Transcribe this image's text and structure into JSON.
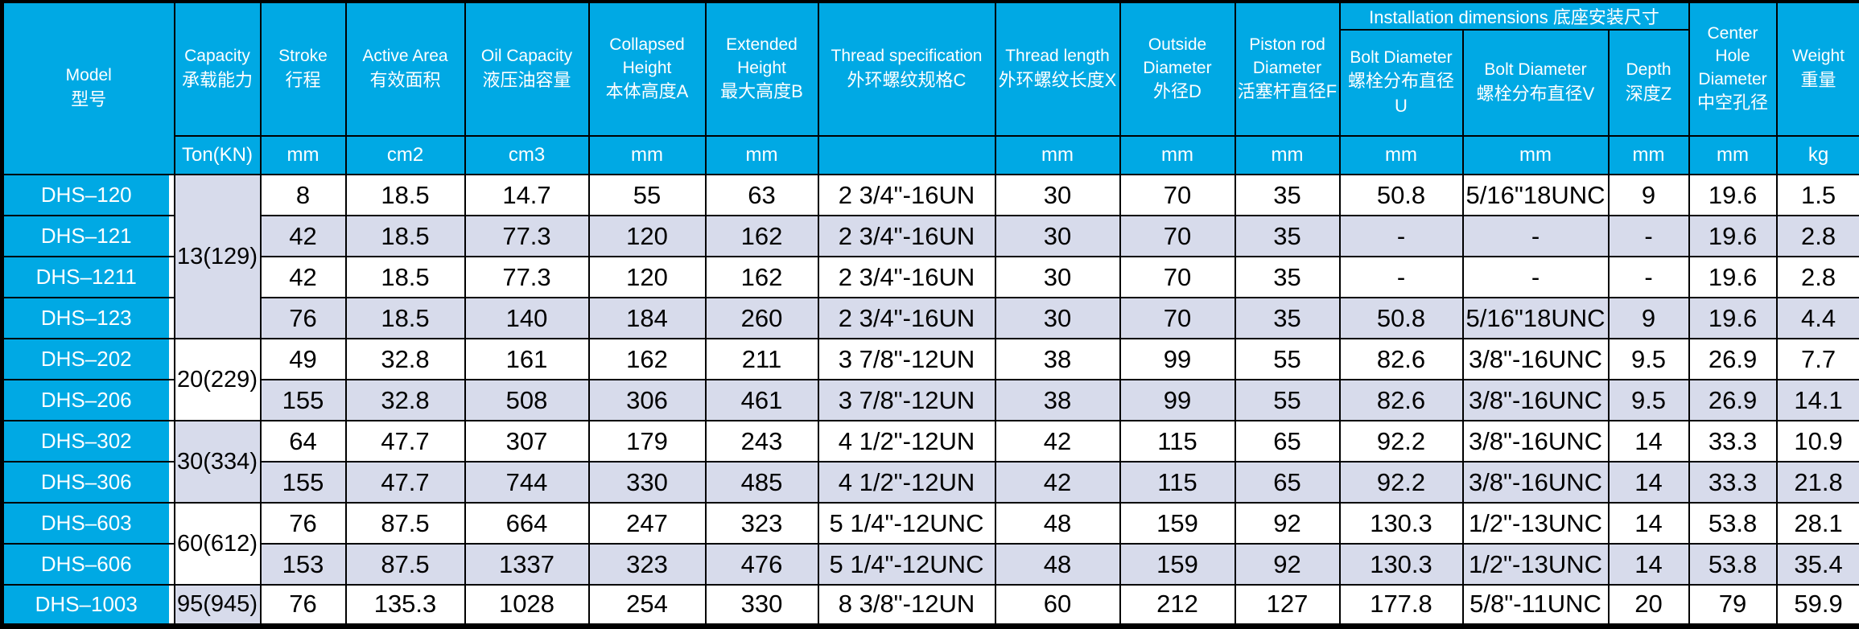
{
  "banner": "Installation dimensions 底座安装尺寸",
  "columns": [
    {
      "en": "Model",
      "zh": "型号",
      "unit": null
    },
    {
      "en": "Capacity",
      "zh": "承载能力",
      "unit": "Ton(KN)"
    },
    {
      "en": "Stroke",
      "zh": "行程",
      "unit": "mm"
    },
    {
      "en": "Active Area",
      "zh": "有效面积",
      "unit": "cm2"
    },
    {
      "en": "Oil Capacity",
      "zh": "液压油容量",
      "unit": "cm3"
    },
    {
      "en": "Collapsed Height",
      "zh": "本体高度A",
      "unit": "mm"
    },
    {
      "en": "Extended Height",
      "zh": "最大高度B",
      "unit": "mm"
    },
    {
      "en": "Thread specification",
      "zh": "外环螺纹规格C",
      "unit": ""
    },
    {
      "en": "Thread length",
      "zh": "外环螺纹长度X",
      "unit": "mm"
    },
    {
      "en": "Outside Diameter",
      "zh": "外径D",
      "unit": "mm"
    },
    {
      "en": "Piston rod Diameter",
      "zh": "活塞杆直径F",
      "unit": "mm"
    },
    {
      "en": "Bolt Diameter",
      "zh": "螺栓分布直径U",
      "unit": "mm"
    },
    {
      "en": "Bolt Diameter",
      "zh": "螺栓分布直径V",
      "unit": "mm"
    },
    {
      "en": "Depth",
      "zh": "深度Z",
      "unit": "mm"
    },
    {
      "en": "Center Hole Diameter",
      "zh": "中空孔径",
      "unit": "mm"
    },
    {
      "en": "Weight",
      "zh": "重量",
      "unit": "kg"
    }
  ],
  "groups": [
    {
      "capacity": "13(129)",
      "models": [
        {
          "model": "DHS–120",
          "values": [
            "8",
            "18.5",
            "14.7",
            "55",
            "63",
            "2 3/4\"-16UN",
            "30",
            "70",
            "35",
            "50.8",
            "5/16\"18UNC",
            "9",
            "19.6",
            "1.5"
          ]
        },
        {
          "model": "DHS–121",
          "values": [
            "42",
            "18.5",
            "77.3",
            "120",
            "162",
            "2 3/4\"-16UN",
            "30",
            "70",
            "35",
            "-",
            "-",
            "-",
            "19.6",
            "2.8"
          ]
        },
        {
          "model": "DHS–1211",
          "values": [
            "42",
            "18.5",
            "77.3",
            "120",
            "162",
            "2 3/4\"-16UN",
            "30",
            "70",
            "35",
            "-",
            "-",
            "-",
            "19.6",
            "2.8"
          ]
        },
        {
          "model": "DHS–123",
          "values": [
            "76",
            "18.5",
            "140",
            "184",
            "260",
            "2 3/4\"-16UN",
            "30",
            "70",
            "35",
            "50.8",
            "5/16\"18UNC",
            "9",
            "19.6",
            "4.4"
          ]
        }
      ]
    },
    {
      "capacity": "20(229)",
      "models": [
        {
          "model": "DHS–202",
          "values": [
            "49",
            "32.8",
            "161",
            "162",
            "211",
            "3 7/8\"-12UN",
            "38",
            "99",
            "55",
            "82.6",
            "3/8\"-16UNC",
            "9.5",
            "26.9",
            "7.7"
          ]
        },
        {
          "model": "DHS–206",
          "values": [
            "155",
            "32.8",
            "508",
            "306",
            "461",
            "3 7/8\"-12UN",
            "38",
            "99",
            "55",
            "82.6",
            "3/8\"-16UNC",
            "9.5",
            "26.9",
            "14.1"
          ]
        }
      ]
    },
    {
      "capacity": "30(334)",
      "models": [
        {
          "model": "DHS–302",
          "values": [
            "64",
            "47.7",
            "307",
            "179",
            "243",
            "4 1/2\"-12UN",
            "42",
            "115",
            "65",
            "92.2",
            "3/8\"-16UNC",
            "14",
            "33.3",
            "10.9"
          ]
        },
        {
          "model": "DHS–306",
          "values": [
            "155",
            "47.7",
            "744",
            "330",
            "485",
            "4 1/2\"-12UN",
            "42",
            "115",
            "65",
            "92.2",
            "3/8\"-16UNC",
            "14",
            "33.3",
            "21.8"
          ]
        }
      ]
    },
    {
      "capacity": "60(612)",
      "models": [
        {
          "model": "DHS–603",
          "values": [
            "76",
            "87.5",
            "664",
            "247",
            "323",
            "5 1/4\"-12UNC",
            "48",
            "159",
            "92",
            "130.3",
            "1/2\"-13UNC",
            "14",
            "53.8",
            "28.1"
          ]
        },
        {
          "model": "DHS–606",
          "values": [
            "153",
            "87.5",
            "1337",
            "323",
            "476",
            "5 1/4\"-12UNC",
            "48",
            "159",
            "92",
            "130.3",
            "1/2\"-13UNC",
            "14",
            "53.8",
            "35.4"
          ]
        }
      ]
    },
    {
      "capacity": "95(945)",
      "models": [
        {
          "model": "DHS–1003",
          "values": [
            "76",
            "135.3",
            "1028",
            "254",
            "330",
            "8 3/8\"-12UN",
            "60",
            "212",
            "127",
            "177.8",
            "5/8\"-11UNC",
            "20",
            "79",
            "59.9"
          ]
        }
      ]
    }
  ],
  "colors": {
    "header_bg": "#00a9e4",
    "stripe_bg": "#d7dbeb",
    "row_bg": "#ffffff",
    "grid": "#000000",
    "header_text": "#ffffff",
    "body_text": "#000000"
  }
}
